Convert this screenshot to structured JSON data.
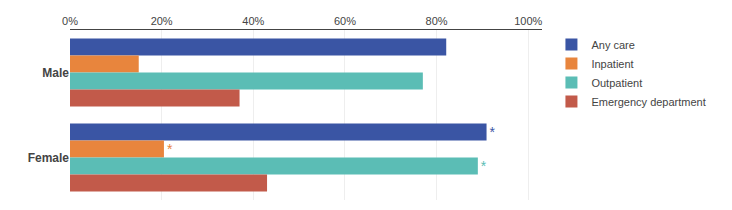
{
  "chart_data": {
    "type": "bar",
    "orientation": "horizontal",
    "categories": [
      "Male",
      "Female"
    ],
    "series": [
      {
        "name": "Any care",
        "color": "#3a55a4",
        "values": [
          82.1,
          90.9
        ]
      },
      {
        "name": "Inpatient",
        "color": "#e8853d",
        "values": [
          15.0,
          20.5
        ]
      },
      {
        "name": "Outpatient",
        "color": "#5bbdb5",
        "values": [
          77.0,
          89.0
        ]
      },
      {
        "name": "Emergency department",
        "color": "#c25a4a",
        "values": [
          37.0,
          43.0
        ]
      }
    ],
    "xlim": [
      0,
      103
    ],
    "xticks": [
      {
        "value": 0,
        "label": "0%"
      },
      {
        "value": 20,
        "label": "20%"
      },
      {
        "value": 40,
        "label": "40%"
      },
      {
        "value": 60,
        "label": "60%"
      },
      {
        "value": 80,
        "label": "80%"
      },
      {
        "value": 100,
        "label": "100%"
      }
    ],
    "grid": true,
    "legend": "right",
    "annotations": [
      {
        "text": "*",
        "series": "Any care",
        "category": "Female"
      },
      {
        "text": "*",
        "series": "Inpatient",
        "category": "Female"
      },
      {
        "text": "*",
        "series": "Outpatient",
        "category": "Female"
      }
    ]
  }
}
